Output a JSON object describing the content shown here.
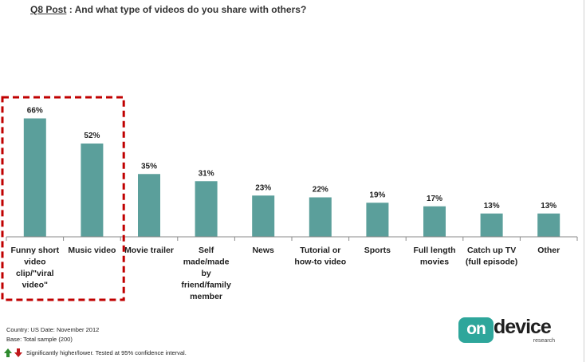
{
  "header": {
    "title_prefix": "Q8 Post",
    "title_text": " : And what type of videos do you share with others?"
  },
  "chart_data": {
    "type": "bar",
    "categories": [
      [
        "Funny short",
        "video",
        "clip/\"viral",
        "video\""
      ],
      [
        "Music  video"
      ],
      [
        "Movie trailer"
      ],
      [
        "Self",
        "made/made",
        "by",
        "friend/family",
        "member"
      ],
      [
        "News"
      ],
      [
        "Tutorial or",
        "how-to video"
      ],
      [
        "Sports"
      ],
      [
        "Full length",
        "movies"
      ],
      [
        "Catch up TV",
        "(full episode)"
      ],
      [
        "Other"
      ]
    ],
    "values": [
      66,
      52,
      35,
      31,
      23,
      22,
      19,
      17,
      13,
      13
    ],
    "value_labels": [
      "66%",
      "52%",
      "35%",
      "31%",
      "23%",
      "22%",
      "19%",
      "17%",
      "13%",
      "13%"
    ],
    "ylim": [
      0,
      100
    ],
    "bar_color": "#5b9f9b",
    "highlight": {
      "from_index": 0,
      "to_index": 1,
      "color": "#c00000",
      "style": "dashed"
    },
    "grid": false,
    "legend": "none"
  },
  "footer": {
    "line1": "Country: US Date: November  2012",
    "line2": "Base: Total sample (200)",
    "line3": "Significantly higher/lower. Tested at 95% confidence interval."
  },
  "logo": {
    "on": "on",
    "device": "device",
    "research": "research"
  },
  "colors": {
    "accent": "#2ea69b",
    "up": "#2e8b2e",
    "down": "#c0181b"
  }
}
